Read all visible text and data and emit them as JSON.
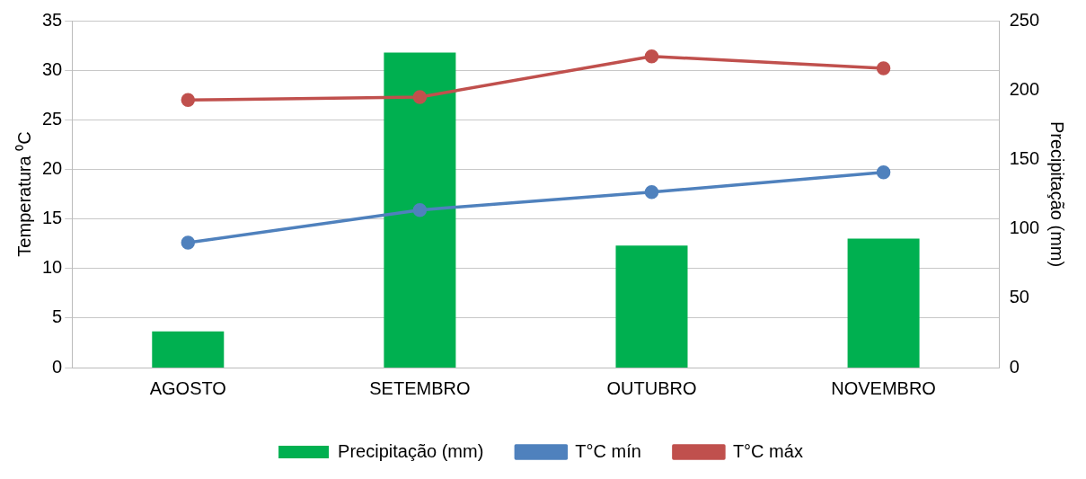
{
  "chart_data": {
    "type": "bar",
    "categories": [
      "AGOSTO",
      "SETEMBRO",
      "OUTUBRO",
      "NOVEMBRO"
    ],
    "ylabel": "Temperatura ⁰C",
    "y2label": "Precipitação (mm)",
    "series": [
      {
        "name": "Precipitação (mm)",
        "axis": "y2",
        "color": "#00b050",
        "values": [
          26,
          227,
          88,
          93
        ]
      },
      {
        "name": "T°C mín",
        "type": "line",
        "color": "#4f81bd",
        "values": [
          12.6,
          15.9,
          17.7,
          19.7
        ]
      },
      {
        "name": "T°C máx",
        "type": "line",
        "color": "#c0504d",
        "values": [
          27.0,
          27.3,
          31.4,
          30.2
        ]
      }
    ],
    "ylim": [
      0,
      35
    ],
    "yticks": [
      0,
      5,
      10,
      15,
      20,
      25,
      30,
      35
    ],
    "y2lim": [
      0,
      250
    ],
    "y2ticks": [
      0,
      50,
      100,
      150,
      200,
      250
    ],
    "grid": "y",
    "legend": "bottom",
    "marker": "circle",
    "line_style": "solid"
  }
}
